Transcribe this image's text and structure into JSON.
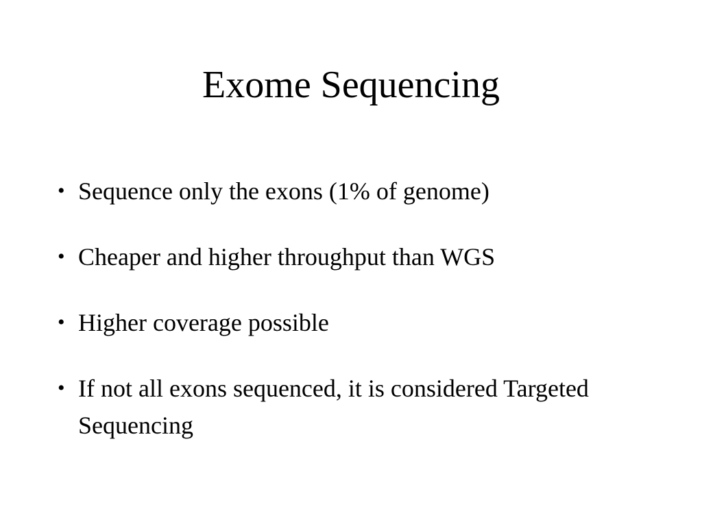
{
  "slide": {
    "title": "Exome Sequencing",
    "bullet_glyph": "•",
    "bullets": [
      "Sequence only the exons (1% of genome)",
      "Cheaper and higher throughput than WGS",
      "Higher coverage possible",
      "If not all exons sequenced, it is considered Targeted Sequencing"
    ]
  }
}
